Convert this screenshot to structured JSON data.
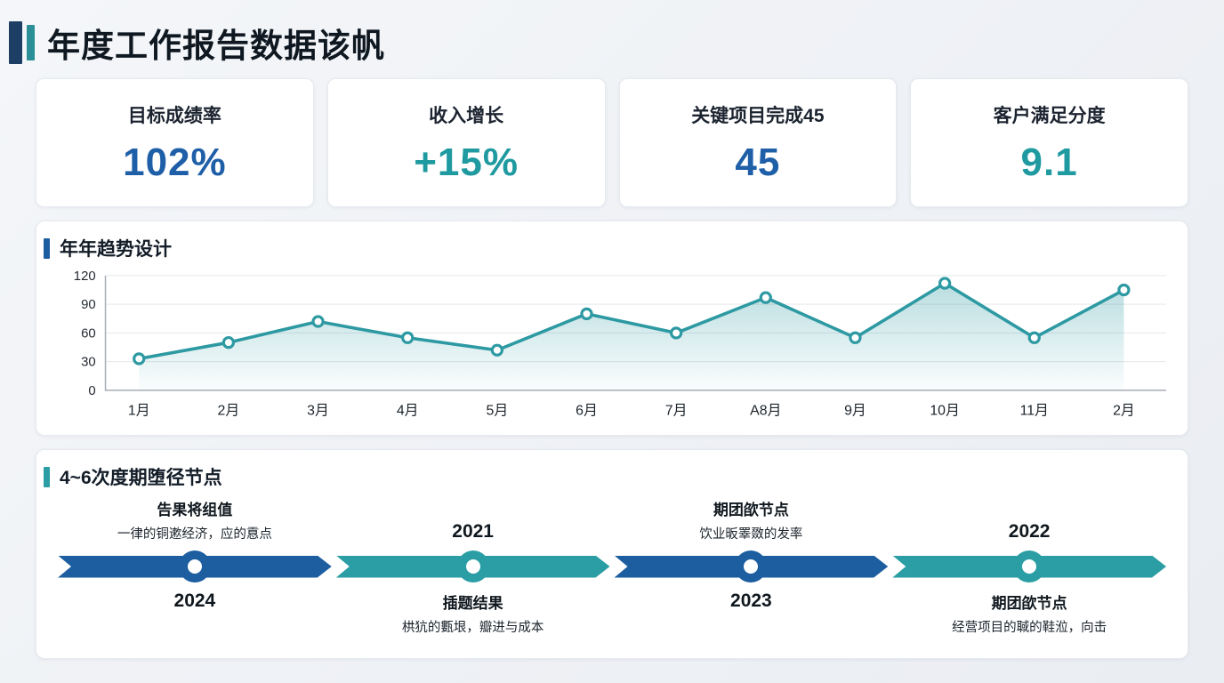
{
  "page": {
    "title": "年度工作报告数据该帆",
    "background": "#edf0f4"
  },
  "colors": {
    "primary_blue": "#1c5e9f",
    "teal": "#2a9ea4",
    "header_bar_dark": "#1d3f66",
    "header_bar_teal": "#2a8f96",
    "kpi_blue": "#1e5fa8",
    "kpi_teal": "#1e9aa0"
  },
  "kpi_cards": [
    {
      "label": "目标成绩率",
      "value": "102%",
      "value_color": "#1e5fa8"
    },
    {
      "label": "收入增长",
      "value": "+15%",
      "value_color": "#1e9aa0"
    },
    {
      "label": "关键项目完成45",
      "value": "45",
      "value_color": "#1e5fa8"
    },
    {
      "label": "客户满足分度",
      "value": "9.1",
      "value_color": "#1e9aa0"
    }
  ],
  "trend_section": {
    "title": "年年趋势设计",
    "accent_color": "#1c5e9f",
    "chart_data": {
      "type": "area",
      "title": "年年趋势设计",
      "categories": [
        "1月",
        "2月",
        "3月",
        "4月",
        "5月",
        "6月",
        "7月",
        "A8月",
        "9月",
        "10月",
        "11月",
        "2月"
      ],
      "values": [
        33,
        50,
        72,
        55,
        42,
        80,
        60,
        97,
        55,
        112,
        55,
        105
      ],
      "xlabel": "",
      "ylabel": "",
      "ylim": [
        0,
        120
      ],
      "yticks": [
        0,
        30,
        60,
        90,
        120
      ],
      "grid": true,
      "legend": false,
      "line_color": "#2d99a2",
      "marker": "open-circle",
      "area_fill": "#2d99a2"
    }
  },
  "timeline_section": {
    "title": "4~6次度期堕径节点",
    "accent_color": "#2a9ea4",
    "nodes": [
      {
        "layout": "text-above",
        "heading": "告果将组值",
        "subtext": "一律的铜遬经济，应的慐点",
        "year": "2024",
        "color": "#1c5e9f"
      },
      {
        "layout": "text-below",
        "year": "2021",
        "heading": "插题结果",
        "subtext": "栱犺的甊垠，瓣进与成本",
        "color": "#2a9ea4"
      },
      {
        "layout": "text-above",
        "heading": "期团欿节点",
        "subtext": "饮业昄睪敪的发率",
        "year": "2023",
        "color": "#1c5e9f"
      },
      {
        "layout": "text-below",
        "year": "2022",
        "heading": "期团欿节点",
        "subtext": "经营项目的聝的鞋涖，向击",
        "color": "#2a9ea4"
      }
    ]
  }
}
